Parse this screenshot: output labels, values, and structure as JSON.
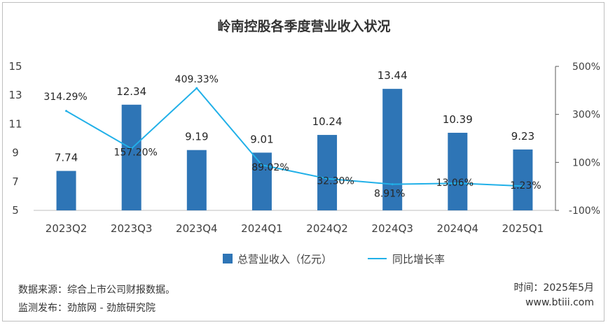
{
  "chart_data": {
    "type": "bar+line",
    "title": "岭南控股各季度营业收入状况",
    "categories": [
      "2023Q2",
      "2023Q3",
      "2023Q4",
      "2024Q1",
      "2024Q2",
      "2024Q3",
      "2024Q4",
      "2025Q1"
    ],
    "series": [
      {
        "name": "总营业收入（亿元）",
        "type": "bar",
        "axis": "left",
        "values": [
          7.74,
          12.34,
          9.19,
          9.01,
          10.24,
          13.44,
          10.39,
          9.23
        ],
        "labels": [
          "7.74",
          "12.34",
          "9.19",
          "9.01",
          "10.24",
          "13.44",
          "10.39",
          "9.23"
        ],
        "color": "#2e75b6"
      },
      {
        "name": "同比增长率",
        "type": "line",
        "axis": "right",
        "values": [
          314.29,
          157.2,
          409.33,
          89.02,
          32.3,
          8.91,
          13.06,
          1.23
        ],
        "labels": [
          "314.29%",
          "157.20%",
          "409.33%",
          "89.02%",
          "32.30%",
          "8.91%",
          "13.06%",
          "1.23%"
        ],
        "color": "#21b0e8"
      }
    ],
    "y_left": {
      "min": 5,
      "max": 15,
      "ticks": [
        "5",
        "7",
        "9",
        "11",
        "13",
        "15"
      ]
    },
    "y_right": {
      "min": -100,
      "max": 500,
      "ticks": [
        "-100%",
        "100%",
        "300%",
        "500%"
      ]
    },
    "grid": false,
    "legend_position": "bottom"
  },
  "footer": {
    "source": "数据来源：综合上市公司财报数据。",
    "publisher": "监测发布：劲旅网 - 劲旅研究院",
    "time": "时间：2025年5月",
    "website": "www.btiii.com"
  }
}
